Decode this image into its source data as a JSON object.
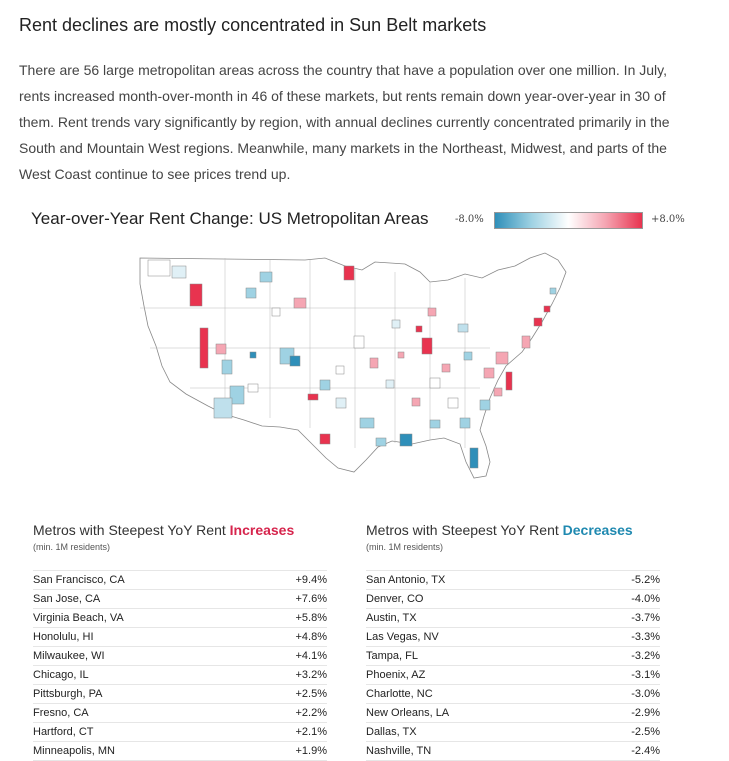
{
  "article": {
    "heading": "Rent declines are mostly concentrated in Sun Belt markets",
    "paragraph": "There are 56 large metropolitan areas across the country that have a population over one million. In July, rents increased month-over-month in 46 of these markets, but rents remain down year-over-year in 30 of them. Rent trends vary significantly by region, with annual declines currently concentrated primarily in the South and Mountain West regions. Meanwhile, many markets in the Northeast, Midwest, and parts of the West Coast continue to see prices trend up."
  },
  "colors": {
    "increase": "#e8334f",
    "decrease": "#2f8fb9",
    "neutral": "#ffffff",
    "border": "#888888"
  },
  "chart_data": [
    {
      "type": "choropleth",
      "title": "Year-over-Year Rent Change: US Metropolitan Areas",
      "legend": {
        "min_label": "-8.0%",
        "max_label": "+8.0%",
        "min": -8.0,
        "max": 8.0,
        "placement": "top-right"
      }
    },
    {
      "type": "table",
      "title_prefix": "Metros with Steepest YoY Rent ",
      "title_highlight": "Increases",
      "subtitle": "(min. 1M residents)",
      "rows": [
        {
          "metro": "San Francisco, CA",
          "value": "+9.4%"
        },
        {
          "metro": "San Jose, CA",
          "value": "+7.6%"
        },
        {
          "metro": "Virginia Beach, VA",
          "value": "+5.8%"
        },
        {
          "metro": "Honolulu, HI",
          "value": "+4.8%"
        },
        {
          "metro": "Milwaukee, WI",
          "value": "+4.1%"
        },
        {
          "metro": "Chicago, IL",
          "value": "+3.2%"
        },
        {
          "metro": "Pittsburgh, PA",
          "value": "+2.5%"
        },
        {
          "metro": "Fresno, CA",
          "value": "+2.2%"
        },
        {
          "metro": "Hartford, CT",
          "value": "+2.1%"
        },
        {
          "metro": "Minneapolis, MN",
          "value": "+1.9%"
        }
      ]
    },
    {
      "type": "table",
      "title_prefix": "Metros with Steepest YoY Rent ",
      "title_highlight": "Decreases",
      "subtitle": "(min. 1M residents)",
      "rows": [
        {
          "metro": "San Antonio, TX",
          "value": "-5.2%"
        },
        {
          "metro": "Denver, CO",
          "value": "-4.0%"
        },
        {
          "metro": "Austin, TX",
          "value": "-3.7%"
        },
        {
          "metro": "Las Vegas, NV",
          "value": "-3.3%"
        },
        {
          "metro": "Tampa, FL",
          "value": "-3.2%"
        },
        {
          "metro": "Phoenix, AZ",
          "value": "-3.1%"
        },
        {
          "metro": "Charlotte, NC",
          "value": "-3.0%"
        },
        {
          "metro": "New Orleans, LA",
          "value": "-2.9%"
        },
        {
          "metro": "Dallas, TX",
          "value": "-2.5%"
        },
        {
          "metro": "Nashville, TN",
          "value": "-2.4%"
        }
      ]
    }
  ]
}
